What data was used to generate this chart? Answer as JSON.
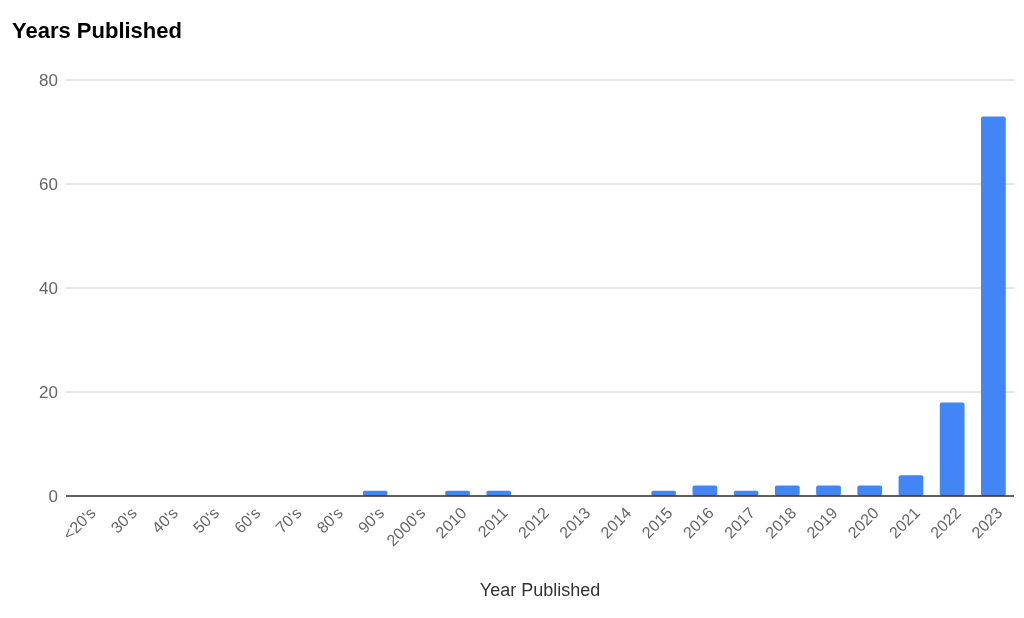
{
  "chart_data": {
    "type": "bar",
    "title": "Years Published",
    "xlabel": "Year Published",
    "categories": [
      "<20's",
      "30's",
      "40's",
      "50's",
      "60's",
      "70's",
      "80's",
      "90's",
      "2000's",
      "2010",
      "2011",
      "2012",
      "2013",
      "2014",
      "2015",
      "2016",
      "2017",
      "2018",
      "2019",
      "2020",
      "2021",
      "2022",
      "2023"
    ],
    "values": [
      0,
      0,
      0,
      0,
      0,
      0,
      0,
      1,
      0,
      1,
      1,
      0,
      0,
      0,
      1,
      2,
      1,
      2,
      2,
      2,
      4,
      18,
      73
    ],
    "color": "#4285f4",
    "ylim": [
      0,
      80
    ],
    "yticks": [
      0,
      20,
      40,
      60,
      80
    ],
    "grid": "y"
  }
}
